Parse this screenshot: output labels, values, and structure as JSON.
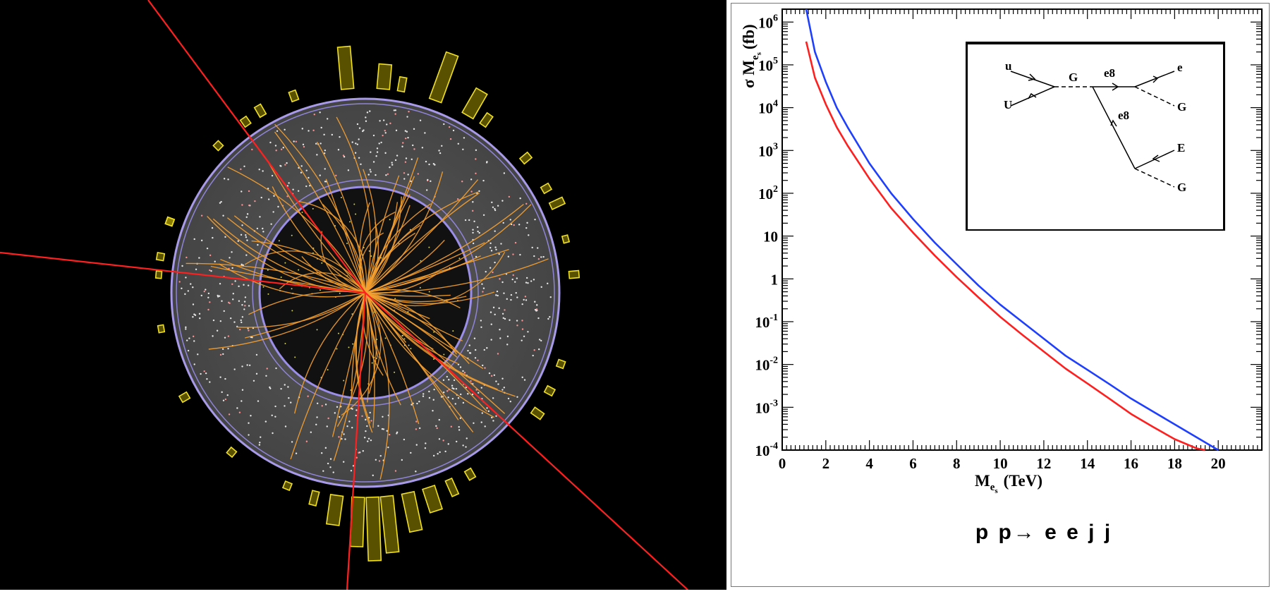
{
  "process_label": "p p→ e e j j",
  "colors": {
    "curve_upper": "#1f3fff",
    "curve_lower": "#ff1f1f",
    "track": "#f5a030",
    "calo_tower": "#f0e020",
    "red_line": "#ff2020",
    "detector_ring": "#9b8ee8",
    "detector_fill": "#555555"
  },
  "chart_data": {
    "type": "line",
    "xlabel_main": "M",
    "xlabel_sub": "e",
    "xlabel_subsub": "s",
    "xlabel_unit": "(TeV)",
    "ylabel_prefix": "σ M",
    "ylabel_sub": "e",
    "ylabel_subsub": "s",
    "ylabel_unit": "(fb)",
    "xlim": [
      0,
      22
    ],
    "ylim": [
      0.0001,
      2000000
    ],
    "yscale": "log",
    "x_ticks": [
      0,
      2,
      4,
      6,
      8,
      10,
      12,
      14,
      16,
      18,
      20
    ],
    "x_tick_labels": [
      "0",
      "2",
      "4",
      "6",
      "8",
      "10",
      "12",
      "14",
      "16",
      "18",
      "20"
    ],
    "y_ticks": [
      0.0001,
      0.001,
      0.01,
      0.1,
      1,
      10,
      100,
      1000,
      10000,
      100000,
      1000000
    ],
    "y_tick_labels": [
      {
        "base": "10",
        "exp": "-4"
      },
      {
        "base": "10",
        "exp": "-3"
      },
      {
        "base": "10",
        "exp": "-2"
      },
      {
        "base": "10",
        "exp": "-1"
      },
      {
        "base": "1",
        "exp": ""
      },
      {
        "base": "10",
        "exp": ""
      },
      {
        "base": "10",
        "exp": "2"
      },
      {
        "base": "10",
        "exp": "3"
      },
      {
        "base": "10",
        "exp": "4"
      },
      {
        "base": "10",
        "exp": "5"
      },
      {
        "base": "10",
        "exp": "6"
      }
    ],
    "series": [
      {
        "color": "#1f3fff",
        "x": [
          1.1,
          1.5,
          2,
          2.5,
          3,
          4,
          5,
          6,
          7,
          8,
          9,
          10,
          11,
          12,
          13,
          14,
          15,
          16,
          17,
          18,
          19,
          20
        ],
        "y": [
          2000000,
          200000,
          40000,
          10000,
          3500,
          500,
          100,
          25,
          7,
          2.2,
          0.7,
          0.25,
          0.1,
          0.04,
          0.016,
          0.0075,
          0.0035,
          0.0016,
          0.0008,
          0.0004,
          0.0002,
          0.0001
        ]
      },
      {
        "color": "#ff1f1f",
        "x": [
          1.1,
          1.5,
          2,
          2.5,
          3,
          4,
          5,
          6,
          7,
          8,
          9,
          10,
          11,
          12,
          13,
          14,
          15,
          16,
          17,
          18,
          19,
          19.4
        ],
        "y": [
          350000,
          50000,
          12000,
          3500,
          1300,
          220,
          45,
          12,
          3.5,
          1.1,
          0.37,
          0.13,
          0.05,
          0.02,
          0.008,
          0.0036,
          0.0016,
          0.0007,
          0.00035,
          0.00018,
          0.00011,
          0.0001
        ]
      }
    ]
  },
  "feynman_diagram": {
    "labels": {
      "u": "u",
      "U": "U",
      "G_mid": "G",
      "e8_top": "e8",
      "e8_mid": "e8",
      "e_out": "e",
      "G_out1": "G",
      "E_out": "E",
      "G_out2": "G"
    }
  }
}
